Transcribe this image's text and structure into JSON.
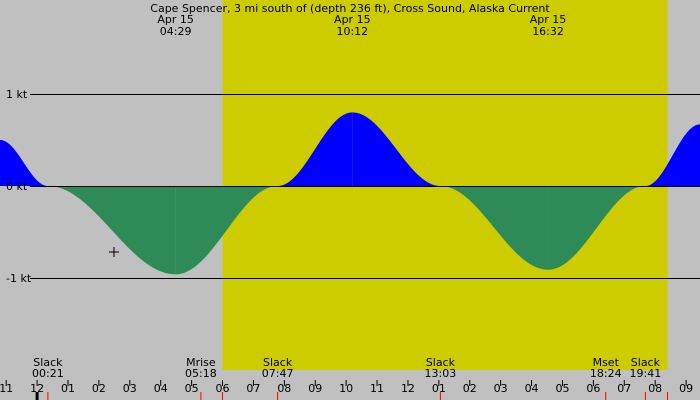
{
  "chart_data": {
    "type": "area",
    "title": "Cape Spencer, 3 mi south of (depth 236 ft), Cross Sound, Alaska Current",
    "y_unit": "kt",
    "y_ticks": [
      {
        "value": 1,
        "label": "1 kt"
      },
      {
        "value": 0,
        "label": "0 kt"
      },
      {
        "value": -1,
        "label": "-1 kt"
      }
    ],
    "ylim": [
      -1.85,
      1.85
    ],
    "xlim_hours": [
      -1.2,
      21.45
    ],
    "daylight_hours": [
      6.0,
      20.4
    ],
    "top_labels": [
      {
        "date": "Apr 15",
        "time": "04:29",
        "hour": 4.483
      },
      {
        "date": "Apr 15",
        "time": "10:12",
        "hour": 10.2
      },
      {
        "date": "Apr 15",
        "time": "16:32",
        "hour": 16.533
      }
    ],
    "events": [
      {
        "label": "Slack",
        "time": "00:21",
        "hour": 0.35
      },
      {
        "label": "Mrise",
        "time": "05:18",
        "hour": 5.3
      },
      {
        "label": "Slack",
        "time": "07:47",
        "hour": 7.783
      },
      {
        "label": "Slack",
        "time": "13:03",
        "hour": 13.05
      },
      {
        "label": "Mset",
        "time": "18:24",
        "hour": 18.4
      },
      {
        "label": "Slack",
        "time": "19:41",
        "hour": 19.683
      }
    ],
    "hour_tick_labels": [
      "11",
      "12",
      "01",
      "02",
      "03",
      "04",
      "05",
      "06",
      "07",
      "08",
      "09",
      "10",
      "11",
      "12",
      "01",
      "02",
      "03",
      "04",
      "05",
      "06",
      "07",
      "08",
      "09"
    ],
    "series": [
      {
        "x_hours": [
          -1.2,
          0.35,
          4.483,
          7.783,
          10.2,
          13.05,
          16.533,
          19.683,
          21.45
        ],
        "y_knots": [
          0.5,
          0.0,
          -0.96,
          0.0,
          0.8,
          0.0,
          -0.91,
          0.0,
          0.67
        ]
      }
    ],
    "colors": {
      "background": "#c0c0c0",
      "daylight": "#cccc00",
      "flood": "#0000ff",
      "ebb": "#2e8b57",
      "line": "#000000",
      "daylight_tick": "#ff0000"
    }
  }
}
